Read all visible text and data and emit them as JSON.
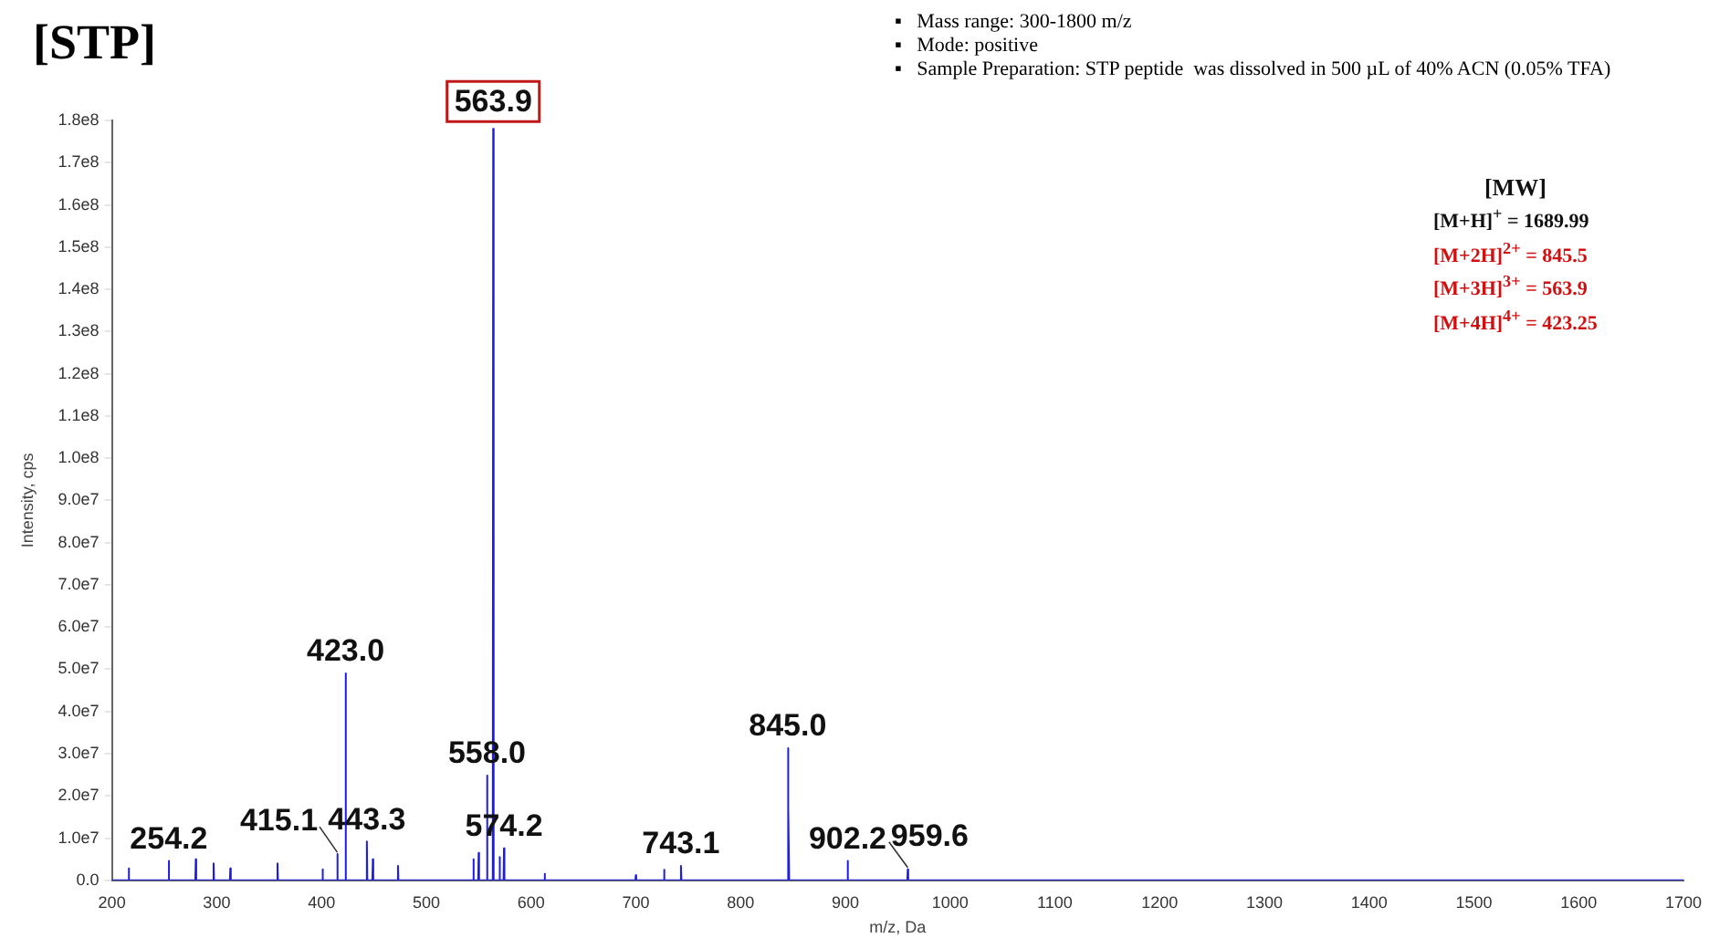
{
  "chart_data": {
    "type": "line",
    "title": "[STP]",
    "xlabel": "m/z, Da",
    "ylabel": "Intensity, cps",
    "color": "#1c1ce6",
    "marker": "none",
    "grid": false,
    "legend": false,
    "x": [
      200,
      215.6,
      216,
      216.4,
      253.8,
      254.2,
      254.6,
      279.6,
      280,
      280.4,
      296.6,
      297,
      297.4,
      312.6,
      313,
      313.4,
      357.6,
      358,
      358.4,
      400.6,
      401,
      401.4,
      414.7,
      415.1,
      415.5,
      422.6,
      423.0,
      423.4,
      442.9,
      443.3,
      443.7,
      448.6,
      449,
      449.4,
      472.6,
      473,
      473.4,
      544.6,
      545,
      545.4,
      549.6,
      550,
      550.4,
      557.6,
      558.0,
      558.4,
      563.5,
      563.9,
      564.3,
      569.6,
      570,
      570.4,
      573.8,
      574.2,
      574.6,
      612.6,
      613,
      613.4,
      699.6,
      700,
      700.4,
      726.6,
      727,
      727.4,
      742.7,
      743.1,
      743.5,
      844.6,
      845.0,
      845.5,
      846,
      846.4,
      901.8,
      902.2,
      902.6,
      959.2,
      959.6,
      960,
      1700
    ],
    "values": [
      0,
      0,
      2800000,
      0,
      0,
      4600000,
      0,
      0,
      5000000,
      0,
      0,
      4000000,
      0,
      0,
      2800000,
      0,
      0,
      4000000,
      0,
      0,
      2600000,
      0,
      0,
      6200000,
      0,
      0,
      49000000,
      0,
      0,
      9200000,
      0,
      0,
      5000000,
      0,
      0,
      3400000,
      0,
      0,
      5000000,
      0,
      0,
      6500000,
      0,
      0,
      24800000,
      0,
      0,
      178000000,
      0,
      0,
      5500000,
      0,
      0,
      7600000,
      0,
      0,
      1500000,
      0,
      0,
      1200000,
      0,
      0,
      2500000,
      0,
      0,
      3400000,
      0,
      0,
      31300000,
      0,
      17200000,
      0,
      0,
      4600000,
      0,
      0,
      2600000,
      0,
      0
    ],
    "xlim": [
      200,
      1700
    ],
    "xticks": [
      200,
      300,
      400,
      500,
      600,
      700,
      800,
      900,
      1000,
      1100,
      1200,
      1300,
      1400,
      1500,
      1600,
      1700
    ],
    "ylim": [
      0,
      180000000
    ],
    "yticks": [
      {
        "value": 0,
        "label": "0.0"
      },
      {
        "value": 10000000,
        "label": "1.0e7"
      },
      {
        "value": 20000000,
        "label": "2.0e7"
      },
      {
        "value": 30000000,
        "label": "3.0e7"
      },
      {
        "value": 40000000,
        "label": "4.0e7"
      },
      {
        "value": 50000000,
        "label": "5.0e7"
      },
      {
        "value": 60000000,
        "label": "6.0e7"
      },
      {
        "value": 70000000,
        "label": "7.0e7"
      },
      {
        "value": 80000000,
        "label": "8.0e7"
      },
      {
        "value": 90000000,
        "label": "9.0e7"
      },
      {
        "value": 100000000,
        "label": "1.0e8"
      },
      {
        "value": 110000000,
        "label": "1.1e8"
      },
      {
        "value": 120000000,
        "label": "1.2e8"
      },
      {
        "value": 130000000,
        "label": "1.3e8"
      },
      {
        "value": 140000000,
        "label": "1.4e8"
      },
      {
        "value": 150000000,
        "label": "1.5e8"
      },
      {
        "value": 160000000,
        "label": "1.6e8"
      },
      {
        "value": 170000000,
        "label": "1.7e8"
      },
      {
        "value": 180000000,
        "label": "1.8e8"
      }
    ],
    "annotations": [
      "▪   Mass range: 300-1800 m/z",
      "▪   Mode: positive",
      "▪   Sample Preparation: STP peptide  was dissolved in 500 µL of 40% ACN (0.05% TFA)",
      "[MW]",
      "[M+H]$^{+}$ = 1689.99",
      "[M+2H]$^{2+}$ = 845.5",
      "[M+3H]$^{3+}$ = 563.9",
      "[M+4H]$^{4+}$ = 423.25",
      {
        "text": "563.9",
        "x": 563.9,
        "y": 178000000
      },
      {
        "text": "423.0",
        "x": 423.0,
        "y": 49000000
      },
      {
        "text": "845.0",
        "x": 845.0,
        "y": 31300000
      },
      {
        "text": "558.0",
        "x": 558.0,
        "y": 24800000
      },
      {
        "text": "443.3",
        "x": 443.3,
        "y": 9200000
      },
      {
        "text": "574.2",
        "x": 574.2,
        "y": 7600000
      },
      {
        "text": "415.1",
        "x": 415.1,
        "y": 6200000
      },
      {
        "text": "254.2",
        "x": 254.2,
        "y": 4600000
      },
      {
        "text": "902.2",
        "x": 902.2,
        "y": 4600000
      },
      {
        "text": "743.1",
        "x": 743.1,
        "y": 3400000
      },
      {
        "text": "959.6",
        "x": 959.6,
        "y": 2600000
      }
    ]
  }
}
